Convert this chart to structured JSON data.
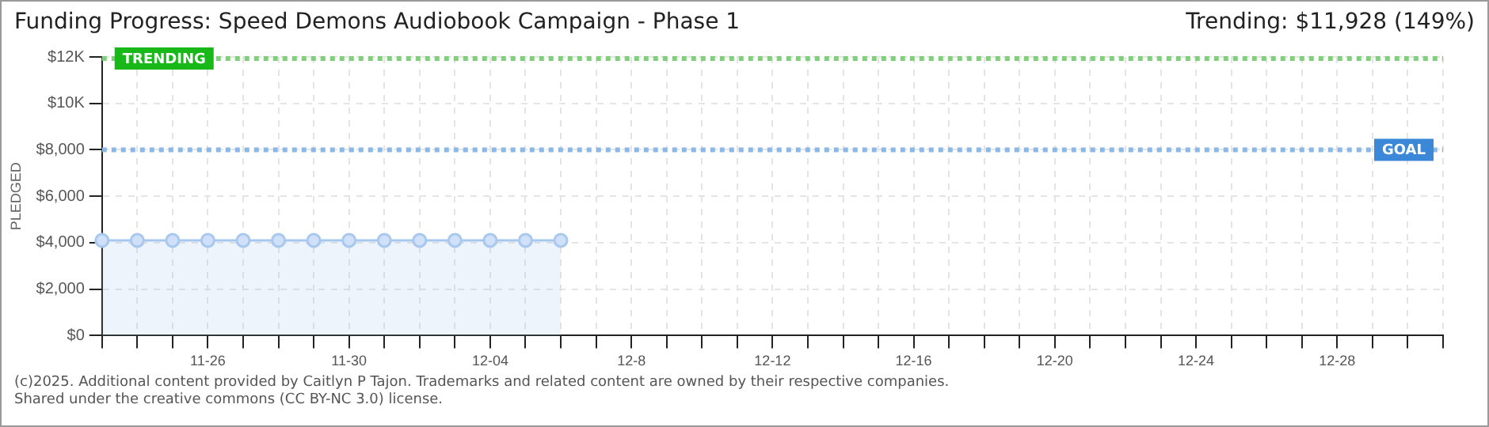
{
  "chart_data": {
    "type": "area",
    "title": "Funding Progress: Speed Demons Audiobook Campaign - Phase 1",
    "annotations": [
      "Trending: $11,928 (149%)",
      "(c)2025. Additional content provided by Caitlyn P Tajon. Trademarks and related content are owned by their respective companies.",
      "Shared under the creative commons (CC BY-NC 3.0) license."
    ],
    "ylabel": "PLEDGED",
    "categories": [
      null,
      null,
      null,
      "11-26",
      null,
      null,
      null,
      "11-30",
      null,
      null,
      null,
      "12-04",
      null,
      null,
      null,
      "12-8",
      null,
      null,
      null,
      "12-12",
      null,
      null,
      null,
      "12-16",
      null,
      null,
      null,
      "12-20",
      null,
      null,
      null,
      "12-24",
      null,
      null,
      null,
      "12-28",
      null,
      null,
      null
    ],
    "series": [
      {
        "color": "#a8c8ee",
        "values": [
          4100,
          4100,
          4100,
          4100,
          4100,
          4100,
          4100,
          4100,
          4100,
          4100,
          4100,
          4100,
          4100,
          4100,
          null,
          null,
          null,
          null,
          null,
          null,
          null,
          null,
          null,
          null,
          null,
          null,
          null,
          null,
          null,
          null,
          null,
          null,
          null,
          null,
          null,
          null,
          null,
          null,
          null
        ]
      }
    ],
    "ylim": [
      0,
      12000
    ],
    "yticks": [
      {
        "value": 0,
        "label": "$0"
      },
      {
        "value": 2000,
        "label": "$2,000"
      },
      {
        "value": 4000,
        "label": "$4,000"
      },
      {
        "value": 6000,
        "label": "$6,000"
      },
      {
        "value": 8000,
        "label": "$8,000"
      },
      {
        "value": 10000,
        "label": "$10K"
      },
      {
        "value": 12000,
        "label": "$12K"
      }
    ],
    "ref_lines": [
      {
        "axis": "y",
        "value": 11928,
        "label": "TRENDING",
        "color": "#7fd07a",
        "line_style": "dotted"
      },
      {
        "axis": "y",
        "value": 8000,
        "label": "GOAL",
        "color": "#8ab8e8",
        "line_style": "dotted"
      }
    ],
    "grid": true,
    "legend": false,
    "marker": "circle",
    "line_style": "solid"
  }
}
